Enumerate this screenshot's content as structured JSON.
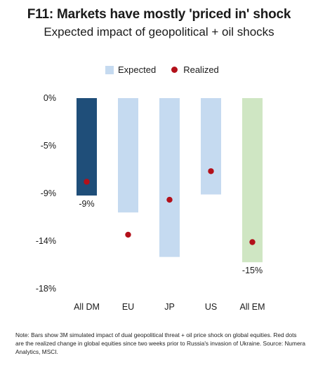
{
  "title": "F11: Markets have mostly 'priced in' shock",
  "subtitle": "Expected impact of geopolitical + oil shocks",
  "legend": {
    "expected_label": "Expected",
    "realized_label": "Realized"
  },
  "colors": {
    "expected_default": "#c5daf0",
    "all_dm": "#1f4e79",
    "all_em": "#cfe6c3",
    "realized_dot": "#b3101a"
  },
  "note": "Note: Bars show 3M simulated impact of dual geopolitical threat + oil price shock on global equities. Red dots are the realized change in global equities since two weeks prior to Russia's invasion of Ukraine.  Source: Numera Analytics, MSCI.",
  "chart_data": {
    "type": "bar",
    "categories": [
      "All DM",
      "EU",
      "JP",
      "US",
      "All EM"
    ],
    "series": [
      {
        "name": "Expected",
        "values": [
          -9.2,
          -10.8,
          -15.0,
          -9.1,
          -15.5
        ],
        "colors": [
          "#1f4e79",
          "#c5daf0",
          "#c5daf0",
          "#c5daf0",
          "#cfe6c3"
        ]
      },
      {
        "name": "Realized",
        "marker": "dot",
        "values": [
          -7.9,
          -12.9,
          -9.6,
          -6.9,
          -13.6
        ],
        "color": "#b3101a"
      }
    ],
    "data_labels": [
      {
        "category": "All DM",
        "text": "-9%"
      },
      {
        "category": "All EM",
        "text": "-15%"
      }
    ],
    "yticks": [
      {
        "value": 0,
        "label": "0%"
      },
      {
        "value": -4.5,
        "label": "-5%"
      },
      {
        "value": -9,
        "label": "-9%"
      },
      {
        "value": -13.5,
        "label": "-14%"
      },
      {
        "value": -18,
        "label": "-18%"
      }
    ],
    "ylim": [
      -18,
      0
    ],
    "grid": false,
    "legend_position": "top-center"
  }
}
